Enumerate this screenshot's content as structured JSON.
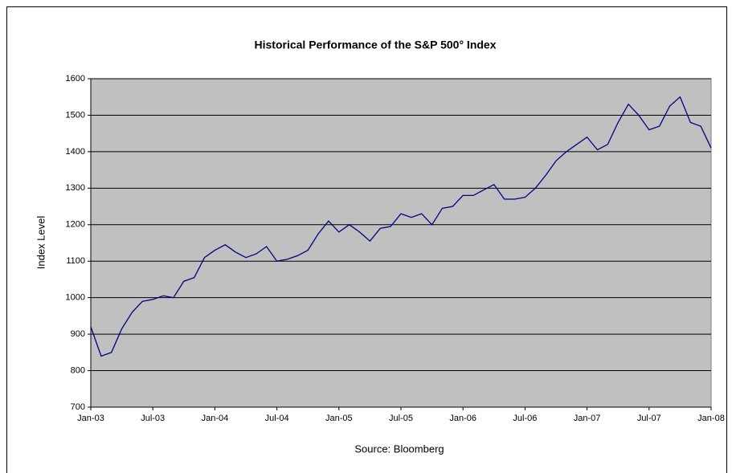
{
  "chart_data": {
    "type": "line",
    "title": "Historical Performance of the S&P 500° Index",
    "y_label": "Index Level",
    "source": "Source: Bloomberg",
    "x": [
      "2003-01",
      "2003-02",
      "2003-03",
      "2003-04",
      "2003-05",
      "2003-06",
      "2003-07",
      "2003-08",
      "2003-09",
      "2003-10",
      "2003-11",
      "2003-12",
      "2004-01",
      "2004-02",
      "2004-03",
      "2004-04",
      "2004-05",
      "2004-06",
      "2004-07",
      "2004-08",
      "2004-09",
      "2004-10",
      "2004-11",
      "2004-12",
      "2005-01",
      "2005-02",
      "2005-03",
      "2005-04",
      "2005-05",
      "2005-06",
      "2005-07",
      "2005-08",
      "2005-09",
      "2005-10",
      "2005-11",
      "2005-12",
      "2006-01",
      "2006-02",
      "2006-03",
      "2006-04",
      "2006-05",
      "2006-06",
      "2006-07",
      "2006-08",
      "2006-09",
      "2006-10",
      "2006-11",
      "2006-12",
      "2007-01",
      "2007-02",
      "2007-03",
      "2007-04",
      "2007-05",
      "2007-06",
      "2007-07",
      "2007-08",
      "2007-09",
      "2007-10",
      "2007-11",
      "2007-12",
      "2008-01"
    ],
    "series": [
      {
        "name": "S&P 500",
        "color": "#000080",
        "values": [
          920,
          840,
          850,
          915,
          960,
          990,
          995,
          1005,
          1000,
          1045,
          1055,
          1110,
          1130,
          1145,
          1125,
          1110,
          1120,
          1140,
          1100,
          1105,
          1115,
          1130,
          1175,
          1210,
          1180,
          1200,
          1180,
          1155,
          1190,
          1195,
          1230,
          1220,
          1230,
          1200,
          1245,
          1250,
          1280,
          1280,
          1295,
          1310,
          1270,
          1270,
          1275,
          1300,
          1335,
          1375,
          1400,
          1420,
          1440,
          1405,
          1420,
          1480,
          1530,
          1500,
          1460,
          1470,
          1525,
          1550,
          1480,
          1470,
          1410
        ]
      }
    ],
    "xticks": [
      {
        "value": "2003-01",
        "label": "Jan-03"
      },
      {
        "value": "2003-07",
        "label": "Jul-03"
      },
      {
        "value": "2004-01",
        "label": "Jan-04"
      },
      {
        "value": "2004-07",
        "label": "Jul-04"
      },
      {
        "value": "2005-01",
        "label": "Jan-05"
      },
      {
        "value": "2005-07",
        "label": "Jul-05"
      },
      {
        "value": "2006-01",
        "label": "Jan-06"
      },
      {
        "value": "2006-07",
        "label": "Jul-06"
      },
      {
        "value": "2007-01",
        "label": "Jan-07"
      },
      {
        "value": "2007-07",
        "label": "Jul-07"
      },
      {
        "value": "2008-01",
        "label": "Jan-08"
      }
    ],
    "xlim": [
      "2003-01",
      "2008-01"
    ],
    "ylim": [
      700,
      1600
    ],
    "yticks": [
      700,
      800,
      900,
      1000,
      1100,
      1200,
      1300,
      1400,
      1500,
      1600
    ],
    "grid": true,
    "plot_color": "#c0c0c0"
  }
}
